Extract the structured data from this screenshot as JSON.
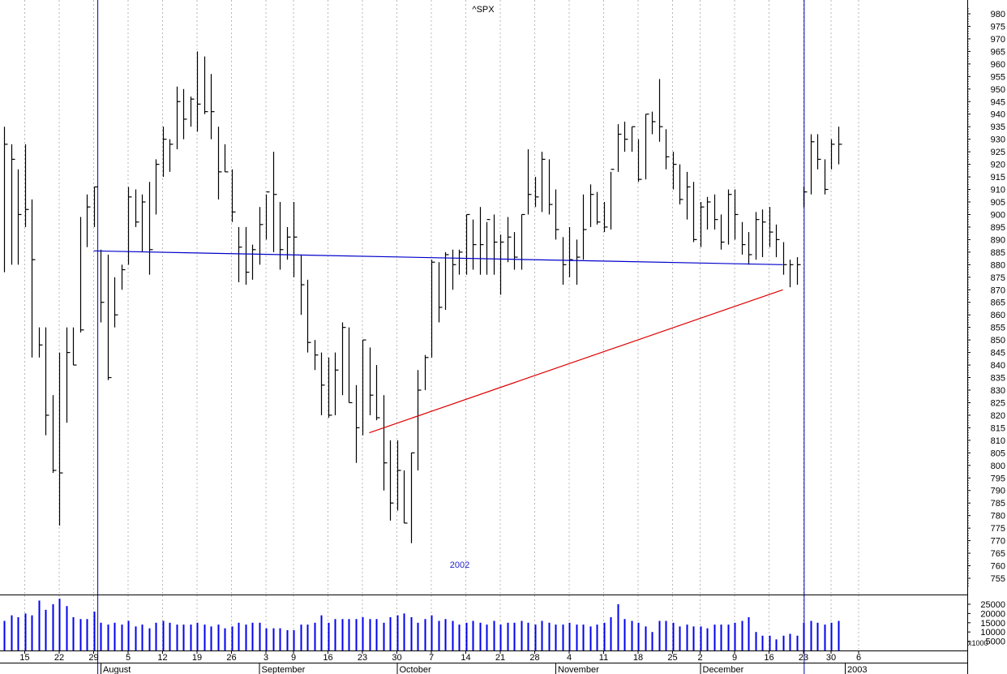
{
  "chart_data": {
    "type": "ohlc",
    "title": "^SPX",
    "annotation": "2002",
    "secondary_label": "2003",
    "price_axis": {
      "ylim": [
        750,
        982
      ],
      "ticks": [
        755,
        760,
        765,
        770,
        775,
        780,
        785,
        790,
        795,
        800,
        805,
        810,
        815,
        820,
        825,
        830,
        835,
        840,
        845,
        850,
        855,
        860,
        865,
        870,
        875,
        880,
        885,
        890,
        895,
        900,
        905,
        910,
        915,
        920,
        925,
        930,
        935,
        940,
        945,
        950,
        955,
        960,
        965,
        970,
        975,
        980
      ]
    },
    "volume_axis": {
      "ticks": [
        {
          "value": 5000,
          "label": "5000"
        },
        {
          "value": 10000,
          "label": "10000"
        },
        {
          "value": 15000,
          "label": "15000"
        },
        {
          "value": 20000,
          "label": "20000"
        },
        {
          "value": 25000,
          "label": "25000"
        }
      ],
      "unit": "x1000"
    },
    "x_axis": {
      "day_labels": [
        {
          "t": 3,
          "label": "15"
        },
        {
          "t": 8,
          "label": "22"
        },
        {
          "t": 13,
          "label": "29"
        },
        {
          "t": 18,
          "label": "5"
        },
        {
          "t": 23,
          "label": "12"
        },
        {
          "t": 28,
          "label": "19"
        },
        {
          "t": 33,
          "label": "26"
        },
        {
          "t": 38,
          "label": "3"
        },
        {
          "t": 42,
          "label": "9"
        },
        {
          "t": 47,
          "label": "16"
        },
        {
          "t": 52,
          "label": "23"
        },
        {
          "t": 57,
          "label": "30"
        },
        {
          "t": 62,
          "label": "7"
        },
        {
          "t": 67,
          "label": "14"
        },
        {
          "t": 72,
          "label": "21"
        },
        {
          "t": 77,
          "label": "28"
        },
        {
          "t": 82,
          "label": "4"
        },
        {
          "t": 87,
          "label": "11"
        },
        {
          "t": 92,
          "label": "18"
        },
        {
          "t": 97,
          "label": "25"
        },
        {
          "t": 101,
          "label": "2"
        },
        {
          "t": 106,
          "label": "9"
        },
        {
          "t": 111,
          "label": "16"
        },
        {
          "t": 116,
          "label": "23"
        },
        {
          "t": 120,
          "label": "30"
        },
        {
          "t": 124,
          "label": "6"
        }
      ],
      "month_labels": [
        {
          "t": 14,
          "label": "August"
        },
        {
          "t": 37,
          "label": "September"
        },
        {
          "t": 57,
          "label": "October"
        },
        {
          "t": 80,
          "label": "November"
        },
        {
          "t": 101,
          "label": "December"
        },
        {
          "t": 122,
          "label": "2003"
        }
      ]
    },
    "bars": [
      {
        "t": 0,
        "h": 935,
        "l": 877,
        "c": 928,
        "v": 16000
      },
      {
        "t": 1,
        "h": 928,
        "l": 880,
        "c": 922,
        "v": 19000
      },
      {
        "t": 2,
        "h": 918,
        "l": 880,
        "c": 900,
        "v": 18000
      },
      {
        "t": 3,
        "h": 928,
        "l": 895,
        "c": 902,
        "v": 20000
      },
      {
        "t": 4,
        "h": 906,
        "l": 843,
        "c": 882,
        "v": 19000
      },
      {
        "t": 5,
        "h": 855,
        "l": 843,
        "c": 848,
        "v": 27000
      },
      {
        "t": 6,
        "h": 855,
        "l": 812,
        "c": 820,
        "v": 22000
      },
      {
        "t": 7,
        "h": 828,
        "l": 797,
        "c": 798,
        "v": 25000
      },
      {
        "t": 8,
        "h": 845,
        "l": 776,
        "c": 797,
        "v": 28000
      },
      {
        "t": 9,
        "h": 855,
        "l": 817,
        "c": 845,
        "v": 24000
      },
      {
        "t": 10,
        "h": 855,
        "l": 840,
        "c": 840,
        "v": 18000
      },
      {
        "t": 11,
        "h": 899,
        "l": 853,
        "c": 854,
        "v": 17000
      },
      {
        "t": 12,
        "h": 908,
        "l": 887,
        "c": 903,
        "v": 17000
      },
      {
        "t": 13,
        "h": 911,
        "l": 895,
        "c": 911,
        "v": 21000
      },
      {
        "t": 14,
        "h": 886,
        "l": 857,
        "c": 865,
        "v": 15000
      },
      {
        "t": 15,
        "h": 884,
        "l": 834,
        "c": 835,
        "v": 14000
      },
      {
        "t": 16,
        "h": 875,
        "l": 855,
        "c": 860,
        "v": 15000
      },
      {
        "t": 17,
        "h": 880,
        "l": 870,
        "c": 878,
        "v": 14000
      },
      {
        "t": 18,
        "h": 911,
        "l": 880,
        "c": 907,
        "v": 16000
      },
      {
        "t": 19,
        "h": 910,
        "l": 895,
        "c": 897,
        "v": 13000
      },
      {
        "t": 20,
        "h": 908,
        "l": 885,
        "c": 905,
        "v": 14000
      },
      {
        "t": 21,
        "h": 913,
        "l": 876,
        "c": 886,
        "v": 12000
      },
      {
        "t": 22,
        "h": 922,
        "l": 900,
        "c": 920,
        "v": 15000
      },
      {
        "t": 23,
        "h": 935,
        "l": 915,
        "c": 930,
        "v": 16000
      },
      {
        "t": 24,
        "h": 930,
        "l": 917,
        "c": 928,
        "v": 15000
      },
      {
        "t": 25,
        "h": 951,
        "l": 926,
        "c": 945,
        "v": 14000
      },
      {
        "t": 26,
        "h": 950,
        "l": 930,
        "c": 938,
        "v": 14000
      },
      {
        "t": 27,
        "h": 947,
        "l": 935,
        "c": 946,
        "v": 14000
      },
      {
        "t": 28,
        "h": 965,
        "l": 933,
        "c": 944,
        "v": 15000
      },
      {
        "t": 29,
        "h": 963,
        "l": 940,
        "c": 941,
        "v": 14000
      },
      {
        "t": 30,
        "h": 956,
        "l": 930,
        "c": 941,
        "v": 13000
      },
      {
        "t": 31,
        "h": 935,
        "l": 906,
        "c": 917,
        "v": 14000
      },
      {
        "t": 32,
        "h": 928,
        "l": 917,
        "c": 917,
        "v": 12000
      },
      {
        "t": 33,
        "h": 918,
        "l": 897,
        "c": 901,
        "v": 13000
      },
      {
        "t": 34,
        "h": 895,
        "l": 873,
        "c": 887,
        "v": 15000
      },
      {
        "t": 35,
        "h": 895,
        "l": 872,
        "c": 877,
        "v": 14000
      },
      {
        "t": 36,
        "h": 888,
        "l": 874,
        "c": 886,
        "v": 15000
      },
      {
        "t": 37,
        "h": 903,
        "l": 880,
        "c": 896,
        "v": 15000
      },
      {
        "t": 38,
        "h": 908,
        "l": 890,
        "c": 909,
        "v": 12000
      },
      {
        "t": 39,
        "h": 925,
        "l": 885,
        "c": 908,
        "v": 12000
      },
      {
        "t": 40,
        "h": 905,
        "l": 878,
        "c": 886,
        "v": 12000
      },
      {
        "t": 41,
        "h": 895,
        "l": 882,
        "c": 891,
        "v": 11000
      },
      {
        "t": 42,
        "h": 905,
        "l": 875,
        "c": 891,
        "v": 11000
      },
      {
        "t": 43,
        "h": 884,
        "l": 860,
        "c": 872,
        "v": 14000
      },
      {
        "t": 44,
        "h": 874,
        "l": 845,
        "c": 849,
        "v": 14000
      },
      {
        "t": 45,
        "h": 850,
        "l": 838,
        "c": 844,
        "v": 15000
      },
      {
        "t": 46,
        "h": 845,
        "l": 820,
        "c": 832,
        "v": 19000
      },
      {
        "t": 47,
        "h": 843,
        "l": 819,
        "c": 820,
        "v": 15000
      },
      {
        "t": 48,
        "h": 845,
        "l": 820,
        "c": 838,
        "v": 17000
      },
      {
        "t": 49,
        "h": 857,
        "l": 828,
        "c": 855,
        "v": 17000
      },
      {
        "t": 50,
        "h": 855,
        "l": 825,
        "c": 825,
        "v": 17000
      },
      {
        "t": 51,
        "h": 832,
        "l": 801,
        "c": 815,
        "v": 17000
      },
      {
        "t": 52,
        "h": 850,
        "l": 812,
        "c": 850,
        "v": 18000
      },
      {
        "t": 53,
        "h": 847,
        "l": 820,
        "c": 828,
        "v": 17000
      },
      {
        "t": 54,
        "h": 840,
        "l": 818,
        "c": 819,
        "v": 17000
      },
      {
        "t": 55,
        "h": 828,
        "l": 790,
        "c": 801,
        "v": 15000
      },
      {
        "t": 56,
        "h": 810,
        "l": 778,
        "c": 785,
        "v": 18000
      },
      {
        "t": 57,
        "h": 810,
        "l": 782,
        "c": 798,
        "v": 19000
      },
      {
        "t": 58,
        "h": 798,
        "l": 777,
        "c": 777,
        "v": 20000
      },
      {
        "t": 59,
        "h": 805,
        "l": 769,
        "c": 805,
        "v": 18000
      },
      {
        "t": 60,
        "h": 838,
        "l": 798,
        "c": 830,
        "v": 15000
      },
      {
        "t": 61,
        "h": 844,
        "l": 830,
        "c": 843,
        "v": 17000
      },
      {
        "t": 62,
        "h": 882,
        "l": 843,
        "c": 881,
        "v": 19000
      },
      {
        "t": 63,
        "h": 881,
        "l": 857,
        "c": 863,
        "v": 16000
      },
      {
        "t": 64,
        "h": 885,
        "l": 862,
        "c": 884,
        "v": 17000
      },
      {
        "t": 65,
        "h": 886,
        "l": 870,
        "c": 880,
        "v": 16000
      },
      {
        "t": 66,
        "h": 886,
        "l": 876,
        "c": 885,
        "v": 14000
      },
      {
        "t": 67,
        "h": 900,
        "l": 876,
        "c": 900,
        "v": 15000
      },
      {
        "t": 68,
        "h": 898,
        "l": 878,
        "c": 888,
        "v": 16000
      },
      {
        "t": 69,
        "h": 903,
        "l": 876,
        "c": 888,
        "v": 15000
      },
      {
        "t": 70,
        "h": 897,
        "l": 876,
        "c": 898,
        "v": 14000
      },
      {
        "t": 71,
        "h": 900,
        "l": 876,
        "c": 889,
        "v": 16000
      },
      {
        "t": 72,
        "h": 892,
        "l": 868,
        "c": 889,
        "v": 14000
      },
      {
        "t": 73,
        "h": 899,
        "l": 881,
        "c": 891,
        "v": 15000
      },
      {
        "t": 74,
        "h": 893,
        "l": 878,
        "c": 883,
        "v": 15000
      },
      {
        "t": 75,
        "h": 900,
        "l": 878,
        "c": 900,
        "v": 16000
      },
      {
        "t": 76,
        "h": 926,
        "l": 900,
        "c": 908,
        "v": 15000
      },
      {
        "t": 77,
        "h": 915,
        "l": 903,
        "c": 907,
        "v": 14000
      },
      {
        "t": 78,
        "h": 925,
        "l": 901,
        "c": 922,
        "v": 16000
      },
      {
        "t": 79,
        "h": 922,
        "l": 900,
        "c": 904,
        "v": 15000
      },
      {
        "t": 80,
        "h": 910,
        "l": 890,
        "c": 894,
        "v": 14000
      },
      {
        "t": 81,
        "h": 891,
        "l": 872,
        "c": 880,
        "v": 14000
      },
      {
        "t": 82,
        "h": 895,
        "l": 875,
        "c": 882,
        "v": 15000
      },
      {
        "t": 83,
        "h": 890,
        "l": 872,
        "c": 883,
        "v": 14000
      },
      {
        "t": 84,
        "h": 908,
        "l": 882,
        "c": 894,
        "v": 14000
      },
      {
        "t": 85,
        "h": 912,
        "l": 895,
        "c": 908,
        "v": 13000
      },
      {
        "t": 86,
        "h": 909,
        "l": 896,
        "c": 897,
        "v": 14000
      },
      {
        "t": 87,
        "h": 905,
        "l": 893,
        "c": 895,
        "v": 15000
      },
      {
        "t": 88,
        "h": 917,
        "l": 894,
        "c": 918,
        "v": 18000
      },
      {
        "t": 89,
        "h": 936,
        "l": 917,
        "c": 932,
        "v": 25000
      },
      {
        "t": 90,
        "h": 937,
        "l": 925,
        "c": 930,
        "v": 17000
      },
      {
        "t": 91,
        "h": 935,
        "l": 925,
        "c": 935,
        "v": 16000
      },
      {
        "t": 92,
        "h": 930,
        "l": 913,
        "c": 914,
        "v": 15000
      },
      {
        "t": 93,
        "h": 940,
        "l": 914,
        "c": 940,
        "v": 13000
      },
      {
        "t": 94,
        "h": 941,
        "l": 932,
        "c": 937,
        "v": 10000
      },
      {
        "t": 95,
        "h": 954,
        "l": 929,
        "c": 935,
        "v": 16000
      },
      {
        "t": 96,
        "h": 934,
        "l": 918,
        "c": 923,
        "v": 16000
      },
      {
        "t": 97,
        "h": 925,
        "l": 910,
        "c": 920,
        "v": 15000
      },
      {
        "t": 98,
        "h": 920,
        "l": 904,
        "c": 906,
        "v": 13000
      },
      {
        "t": 99,
        "h": 917,
        "l": 898,
        "c": 911,
        "v": 14000
      },
      {
        "t": 100,
        "h": 913,
        "l": 889,
        "c": 890,
        "v": 13000
      },
      {
        "t": 101,
        "h": 905,
        "l": 887,
        "c": 903,
        "v": 13000
      },
      {
        "t": 102,
        "h": 907,
        "l": 894,
        "c": 905,
        "v": 12000
      },
      {
        "t": 103,
        "h": 908,
        "l": 894,
        "c": 898,
        "v": 14000
      },
      {
        "t": 104,
        "h": 900,
        "l": 886,
        "c": 889,
        "v": 14000
      },
      {
        "t": 105,
        "h": 910,
        "l": 888,
        "c": 908,
        "v": 14000
      },
      {
        "t": 106,
        "h": 910,
        "l": 890,
        "c": 900,
        "v": 15000
      },
      {
        "t": 107,
        "h": 897,
        "l": 884,
        "c": 888,
        "v": 16000
      },
      {
        "t": 108,
        "h": 893,
        "l": 880,
        "c": 884,
        "v": 18000
      },
      {
        "t": 109,
        "h": 901,
        "l": 882,
        "c": 898,
        "v": 10000
      },
      {
        "t": 110,
        "h": 902,
        "l": 883,
        "c": 897,
        "v": 8000
      },
      {
        "t": 111,
        "h": 903,
        "l": 887,
        "c": 893,
        "v": 8000
      },
      {
        "t": 112,
        "h": 896,
        "l": 883,
        "c": 890,
        "v": 6000
      },
      {
        "t": 113,
        "h": 889,
        "l": 876,
        "c": 880,
        "v": 8000
      },
      {
        "t": 114,
        "h": 882,
        "l": 871,
        "c": 880,
        "v": 9000
      },
      {
        "t": 115,
        "h": 883,
        "l": 872,
        "c": 880,
        "v": 8000
      },
      {
        "t": 116,
        "h": 911,
        "l": 903,
        "c": 909,
        "v": 15000
      },
      {
        "t": 117,
        "h": 932,
        "l": 908,
        "c": 929,
        "v": 16000
      },
      {
        "t": 118,
        "h": 932,
        "l": 918,
        "c": 922,
        "v": 15000
      },
      {
        "t": 119,
        "h": 922,
        "l": 908,
        "c": 910,
        "v": 14000
      },
      {
        "t": 120,
        "h": 930,
        "l": 918,
        "c": 928,
        "v": 15000
      },
      {
        "t": 121,
        "h": 935,
        "l": 920,
        "c": 928,
        "v": 16000
      }
    ],
    "lines": [
      {
        "name": "blue-trendline",
        "color": "#0000cc",
        "points": [
          [
            13,
            885.5
          ],
          [
            113,
            880
          ]
        ]
      },
      {
        "name": "red-trendline",
        "color": "#dd0000",
        "points": [
          [
            53,
            813
          ],
          [
            113,
            870
          ]
        ]
      }
    ],
    "vertical_markers": [
      {
        "name": "marker-august",
        "t": 13.6,
        "color": "#0000aa"
      },
      {
        "name": "marker-january",
        "t": 116.1,
        "color": "#0000aa"
      }
    ],
    "grid": true
  }
}
